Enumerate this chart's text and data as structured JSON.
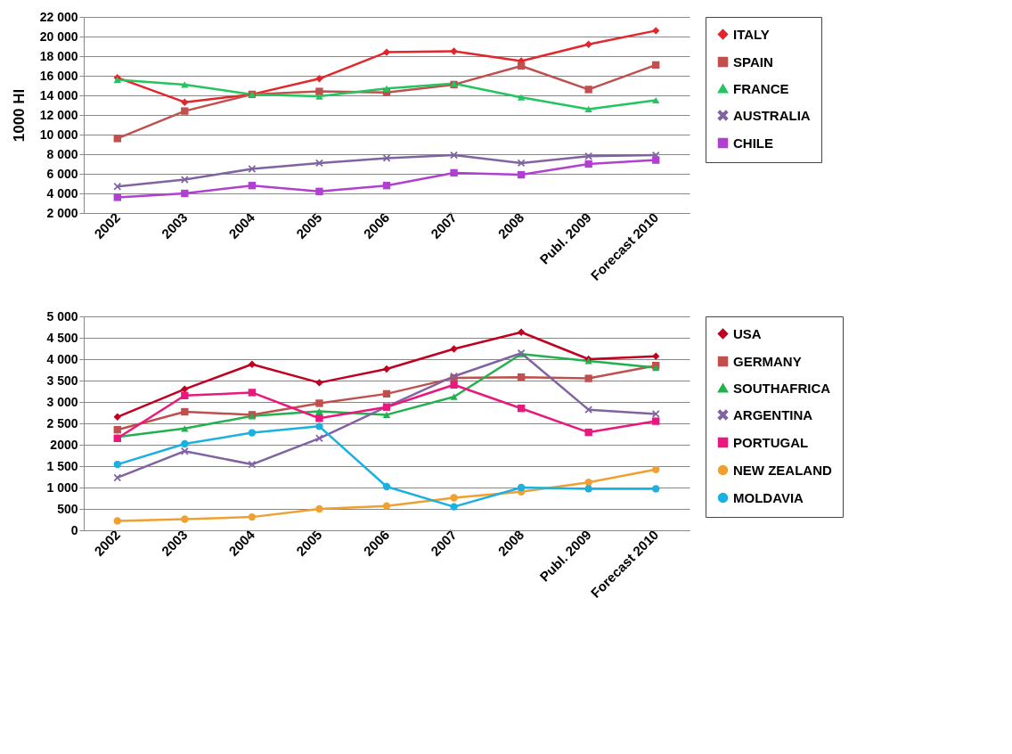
{
  "chart_data": [
    {
      "type": "line",
      "ylabel": "1000 Hl",
      "categories": [
        "2002",
        "2003",
        "2004",
        "2005",
        "2006",
        "2007",
        "2008",
        "Publ. 2009",
        "Forecast 2010"
      ],
      "ylim": [
        2000,
        22000
      ],
      "yticks": [
        {
          "value": 2000,
          "label": "2 000"
        },
        {
          "value": 4000,
          "label": "4 000"
        },
        {
          "value": 6000,
          "label": "6 000"
        },
        {
          "value": 8000,
          "label": "8 000"
        },
        {
          "value": 10000,
          "label": "10 000"
        },
        {
          "value": 12000,
          "label": "12 000"
        },
        {
          "value": 14000,
          "label": "14 000"
        },
        {
          "value": 16000,
          "label": "16 000"
        },
        {
          "value": 18000,
          "label": "18 000"
        },
        {
          "value": 20000,
          "label": "20 000"
        },
        {
          "value": 22000,
          "label": "22 000"
        }
      ],
      "grid": "y",
      "legend": "right",
      "series": [
        {
          "name": "ITALY",
          "color": "#e3262b",
          "marker": "diamond",
          "values": [
            15800,
            13300,
            14100,
            15700,
            18400,
            18500,
            17500,
            19200,
            20600
          ]
        },
        {
          "name": "SPAIN",
          "color": "#c0504d",
          "marker": "square",
          "values": [
            9600,
            12400,
            14100,
            14400,
            14300,
            15100,
            17000,
            14600,
            17100
          ]
        },
        {
          "name": "FRANCE",
          "color": "#22c55e",
          "marker": "triangle",
          "values": [
            15600,
            15100,
            14100,
            13900,
            14700,
            15200,
            13800,
            12600,
            13500
          ]
        },
        {
          "name": "AUSTRALIA",
          "color": "#8064a2",
          "marker": "cross",
          "values": [
            4700,
            5400,
            6500,
            7100,
            7600,
            7900,
            7100,
            7800,
            7900
          ]
        },
        {
          "name": "CHILE",
          "color": "#b040d0",
          "marker": "square",
          "values": [
            3600,
            4000,
            4800,
            4200,
            4800,
            6100,
            5900,
            7000,
            7400
          ]
        }
      ]
    },
    {
      "type": "line",
      "categories": [
        "2002",
        "2003",
        "2004",
        "2005",
        "2006",
        "2007",
        "2008",
        "Publ. 2009",
        "Forecast 2010"
      ],
      "ylim": [
        0,
        5000
      ],
      "yticks": [
        0,
        500,
        {
          "value": 1000,
          "label": "1 000"
        },
        {
          "value": 1500,
          "label": "1 500"
        },
        2000,
        {
          "value": 2500,
          "label": "2 500"
        },
        {
          "value": 3000,
          "label": "3 000"
        },
        {
          "value": 3500,
          "label": "3 500"
        },
        {
          "value": 4000,
          "label": "4 000"
        },
        {
          "value": 4500,
          "label": "4 500"
        },
        {
          "value": 5000,
          "label": "5 000"
        }
      ],
      "grid": "y",
      "legend": "right",
      "series": [
        {
          "name": "USA",
          "color": "#c00020",
          "marker": "diamond",
          "values": [
            2650,
            3300,
            3880,
            3450,
            3770,
            4240,
            4630,
            4000,
            4070
          ]
        },
        {
          "name": "GERMANY",
          "color": "#c0504d",
          "marker": "square",
          "values": [
            2350,
            2770,
            2700,
            2970,
            3190,
            3560,
            3580,
            3550,
            3850
          ]
        },
        {
          "name": "SOUTHAFRICA",
          "color": "#22b14c",
          "marker": "triangle",
          "values": [
            2180,
            2380,
            2670,
            2780,
            2700,
            3120,
            4120,
            3960,
            3800
          ]
        },
        {
          "name": "ARGENTINA",
          "color": "#8064a2",
          "marker": "cross",
          "values": [
            1230,
            1850,
            1540,
            2150,
            2890,
            3600,
            4140,
            2820,
            2720
          ]
        },
        {
          "name": "PORTUGAL",
          "color": "#e8197d",
          "marker": "square",
          "values": [
            2150,
            3150,
            3220,
            2620,
            2880,
            3400,
            2850,
            2290,
            2550
          ]
        },
        {
          "name": "NEW ZEALAND",
          "color": "#f0a030",
          "marker": "circle",
          "values": [
            220,
            260,
            310,
            500,
            570,
            760,
            900,
            1120,
            1420
          ]
        },
        {
          "name": "MOLDAVIA",
          "color": "#1ab0e0",
          "marker": "circle",
          "values": [
            1540,
            2020,
            2280,
            2430,
            1020,
            550,
            1000,
            970,
            970
          ]
        }
      ]
    }
  ]
}
